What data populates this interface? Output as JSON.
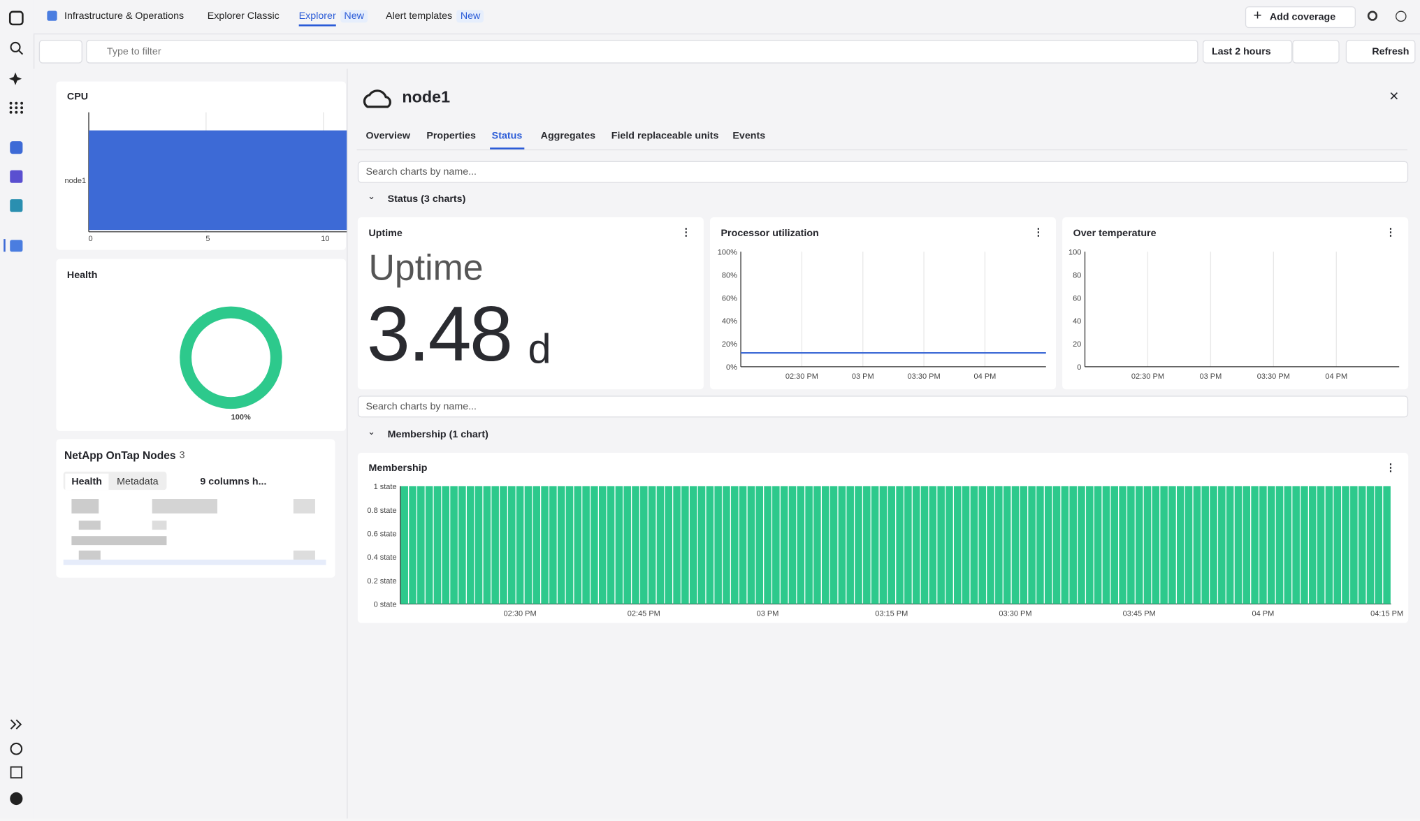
{
  "nav": {
    "tabs": [
      {
        "label": "Infrastructure & Operations"
      },
      {
        "label": "Explorer Classic"
      },
      {
        "label": "Explorer",
        "badge": "New"
      },
      {
        "label": "Alert templates",
        "badge": "New"
      }
    ],
    "active_index": 2,
    "add_coverage": "Add coverage"
  },
  "filter": {
    "placeholder": "Type to filter",
    "timeframe": "Last 2 hours",
    "refresh": "Refresh"
  },
  "left": {
    "cpu": {
      "title": "CPU",
      "type": "bar",
      "categories": [
        "node1"
      ],
      "values": [
        11
      ],
      "color": "#3d6ad6",
      "xlim": [
        0,
        11
      ],
      "xticks": [
        0,
        5,
        10
      ],
      "grid": true
    },
    "health": {
      "title": "Health",
      "type": "donut",
      "values": [
        100
      ],
      "value_labels": [
        "100%"
      ],
      "color": "#2dc98c"
    },
    "nodes": {
      "title": "NetApp OnTap Nodes",
      "count": 3,
      "tabs": [
        "Health",
        "Metadata"
      ],
      "columns": "9 columns h..."
    }
  },
  "detail": {
    "title": "node1",
    "tabs": [
      "Overview",
      "Properties",
      "Status",
      "Aggregates",
      "Field replaceable units",
      "Events"
    ],
    "active_tab": 2,
    "search": "Search charts by name...",
    "sections": [
      "Status (3 charts)",
      "Membership (1 chart)"
    ],
    "uptime": {
      "title": "Uptime",
      "label": "Uptime",
      "value": 3.48,
      "unit": "d"
    },
    "processor": {
      "title": "Processor utilization",
      "type": "line",
      "categories": [
        null,
        "02:30 PM",
        "03 PM",
        "03:30 PM",
        "04 PM",
        null
      ],
      "values": [
        12,
        12,
        12,
        12,
        12,
        12
      ],
      "color": "#3d6ad6",
      "ylim": [
        0,
        100
      ],
      "yticks": [
        {
          "value": 0,
          "label": "0%"
        },
        {
          "value": 20,
          "label": "20%"
        },
        {
          "value": 40,
          "label": "40%"
        },
        {
          "value": 60,
          "label": "60%"
        },
        {
          "value": 80,
          "label": "80%"
        },
        {
          "value": 100,
          "label": "100%"
        }
      ],
      "grid": true
    },
    "temperature": {
      "title": "Over temperature",
      "type": "line",
      "categories": [
        null,
        "02:30 PM",
        "03 PM",
        "03:30 PM",
        "04 PM",
        null
      ],
      "ylim": [
        0,
        100
      ],
      "yticks": [
        0,
        20,
        40,
        60,
        80,
        100
      ],
      "grid": true
    },
    "membership": {
      "title": "Membership",
      "type": "bar",
      "color": "#2dc98c",
      "ylim": [
        0,
        1
      ],
      "yticks": [
        {
          "value": 0,
          "label": "0 state"
        },
        {
          "value": 0.2,
          "label": "0.2 state"
        },
        {
          "value": 0.4,
          "label": "0.4 state"
        },
        {
          "value": 0.6,
          "label": "0.6 state"
        },
        {
          "value": 0.8,
          "label": "0.8 state"
        },
        {
          "value": 1,
          "label": "1 state"
        }
      ],
      "categories": [
        null,
        null,
        null,
        null,
        null,
        null,
        null,
        null,
        null,
        null,
        null,
        null,
        null,
        null,
        "02:30 PM",
        null,
        null,
        null,
        null,
        null,
        null,
        null,
        null,
        null,
        null,
        null,
        null,
        null,
        null,
        "02:45 PM",
        null,
        null,
        null,
        null,
        null,
        null,
        null,
        null,
        null,
        null,
        null,
        null,
        null,
        null,
        "03 PM",
        null,
        null,
        null,
        null,
        null,
        null,
        null,
        null,
        null,
        null,
        null,
        null,
        null,
        null,
        "03:15 PM",
        null,
        null,
        null,
        null,
        null,
        null,
        null,
        null,
        null,
        null,
        null,
        null,
        null,
        null,
        "03:30 PM",
        null,
        null,
        null,
        null,
        null,
        null,
        null,
        null,
        null,
        null,
        null,
        null,
        null,
        null,
        "03:45 PM",
        null,
        null,
        null,
        null,
        null,
        null,
        null,
        null,
        null,
        null,
        null,
        null,
        null,
        null,
        "04 PM",
        null,
        null,
        null,
        null,
        null,
        null,
        null,
        null,
        null,
        null,
        null,
        null,
        null,
        null,
        "04:15 PM"
      ],
      "values": [
        1,
        1,
        1,
        1,
        1,
        1,
        1,
        1,
        1,
        1,
        1,
        1,
        1,
        1,
        1,
        1,
        1,
        1,
        1,
        1,
        1,
        1,
        1,
        1,
        1,
        1,
        1,
        1,
        1,
        1,
        1,
        1,
        1,
        1,
        1,
        1,
        1,
        1,
        1,
        1,
        1,
        1,
        1,
        1,
        1,
        1,
        1,
        1,
        1,
        1,
        1,
        1,
        1,
        1,
        1,
        1,
        1,
        1,
        1,
        1,
        1,
        1,
        1,
        1,
        1,
        1,
        1,
        1,
        1,
        1,
        1,
        1,
        1,
        1,
        1,
        1,
        1,
        1,
        1,
        1,
        1,
        1,
        1,
        1,
        1,
        1,
        1,
        1,
        1,
        1,
        1,
        1,
        1,
        1,
        1,
        1,
        1,
        1,
        1,
        1,
        1,
        1,
        1,
        1,
        1,
        1,
        1,
        1,
        1,
        1,
        1,
        1,
        1,
        1,
        1,
        1,
        1,
        1,
        1,
        1
      ]
    }
  }
}
